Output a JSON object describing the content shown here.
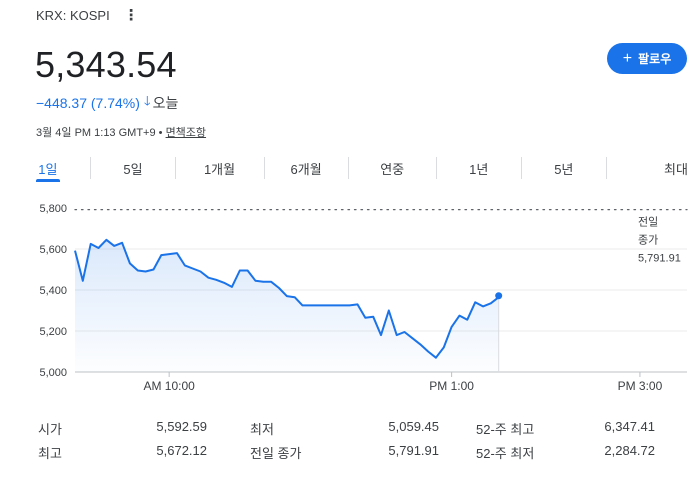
{
  "header": {
    "ticker": "KRX: KOSPI",
    "price": "5,343.54",
    "change": "−448.37 (7.74%)",
    "change_period": "오늘",
    "timestamp": "3월 4일 PM 1:13 GMT+9 • ",
    "disclaimer": "면책조항",
    "follow_label": "팔로우"
  },
  "tabs": [
    {
      "label": "1일",
      "active": true
    },
    {
      "label": "5일"
    },
    {
      "label": "1개월"
    },
    {
      "label": "6개월"
    },
    {
      "label": "연중"
    },
    {
      "label": "1년"
    },
    {
      "label": "5년"
    },
    {
      "label": "최대"
    }
  ],
  "chart_data": {
    "type": "area",
    "y_ticks": [
      "5,800",
      "5,600",
      "5,400",
      "5,200",
      "5,000"
    ],
    "ylim": [
      5000,
      5800
    ],
    "x_ticks": [
      {
        "label": "AM 10:00",
        "minutes": 60
      },
      {
        "label": "PM 1:00",
        "minutes": 240
      },
      {
        "label": "PM 3:00",
        "minutes": 360
      }
    ],
    "session_minutes": 390,
    "previous_close": {
      "label_line1": "전일",
      "label_line2": "종가",
      "value": "5,791.91",
      "y": 5791.91
    },
    "series": [
      {
        "color": "#1a73e8",
        "points": [
          [
            0,
            5592
          ],
          [
            5,
            5445
          ],
          [
            10,
            5625
          ],
          [
            15,
            5605
          ],
          [
            20,
            5645
          ],
          [
            25,
            5615
          ],
          [
            30,
            5630
          ],
          [
            35,
            5530
          ],
          [
            40,
            5495
          ],
          [
            45,
            5490
          ],
          [
            50,
            5500
          ],
          [
            55,
            5570
          ],
          [
            60,
            5575
          ],
          [
            65,
            5580
          ],
          [
            70,
            5520
          ],
          [
            75,
            5505
          ],
          [
            80,
            5490
          ],
          [
            85,
            5460
          ],
          [
            90,
            5450
          ],
          [
            95,
            5435
          ],
          [
            100,
            5415
          ],
          [
            105,
            5495
          ],
          [
            110,
            5495
          ],
          [
            115,
            5445
          ],
          [
            120,
            5440
          ],
          [
            125,
            5440
          ],
          [
            130,
            5410
          ],
          [
            135,
            5370
          ],
          [
            140,
            5365
          ],
          [
            145,
            5325
          ],
          [
            150,
            5325
          ],
          [
            155,
            5325
          ],
          [
            160,
            5325
          ],
          [
            165,
            5325
          ],
          [
            170,
            5325
          ],
          [
            175,
            5325
          ],
          [
            180,
            5330
          ],
          [
            185,
            5265
          ],
          [
            190,
            5270
          ],
          [
            195,
            5180
          ],
          [
            200,
            5300
          ],
          [
            205,
            5180
          ],
          [
            210,
            5195
          ],
          [
            215,
            5165
          ],
          [
            220,
            5135
          ],
          [
            225,
            5100
          ],
          [
            230,
            5070
          ],
          [
            235,
            5120
          ],
          [
            240,
            5220
          ],
          [
            245,
            5275
          ],
          [
            250,
            5255
          ],
          [
            255,
            5340
          ],
          [
            260,
            5320
          ],
          [
            265,
            5335
          ],
          [
            270,
            5365
          ]
        ],
        "last": [
          270,
          5372
        ]
      }
    ]
  },
  "stats": [
    [
      {
        "label": "시가",
        "value": "5,592.59"
      },
      {
        "label": "최저",
        "value": "5,059.45"
      },
      {
        "label": "52-주 최고",
        "value": "6,347.41"
      }
    ],
    [
      {
        "label": "최고",
        "value": "5,672.12"
      },
      {
        "label": "전일 종가",
        "value": "5,791.91"
      },
      {
        "label": "52-주 최저",
        "value": "2,284.72"
      }
    ]
  ]
}
